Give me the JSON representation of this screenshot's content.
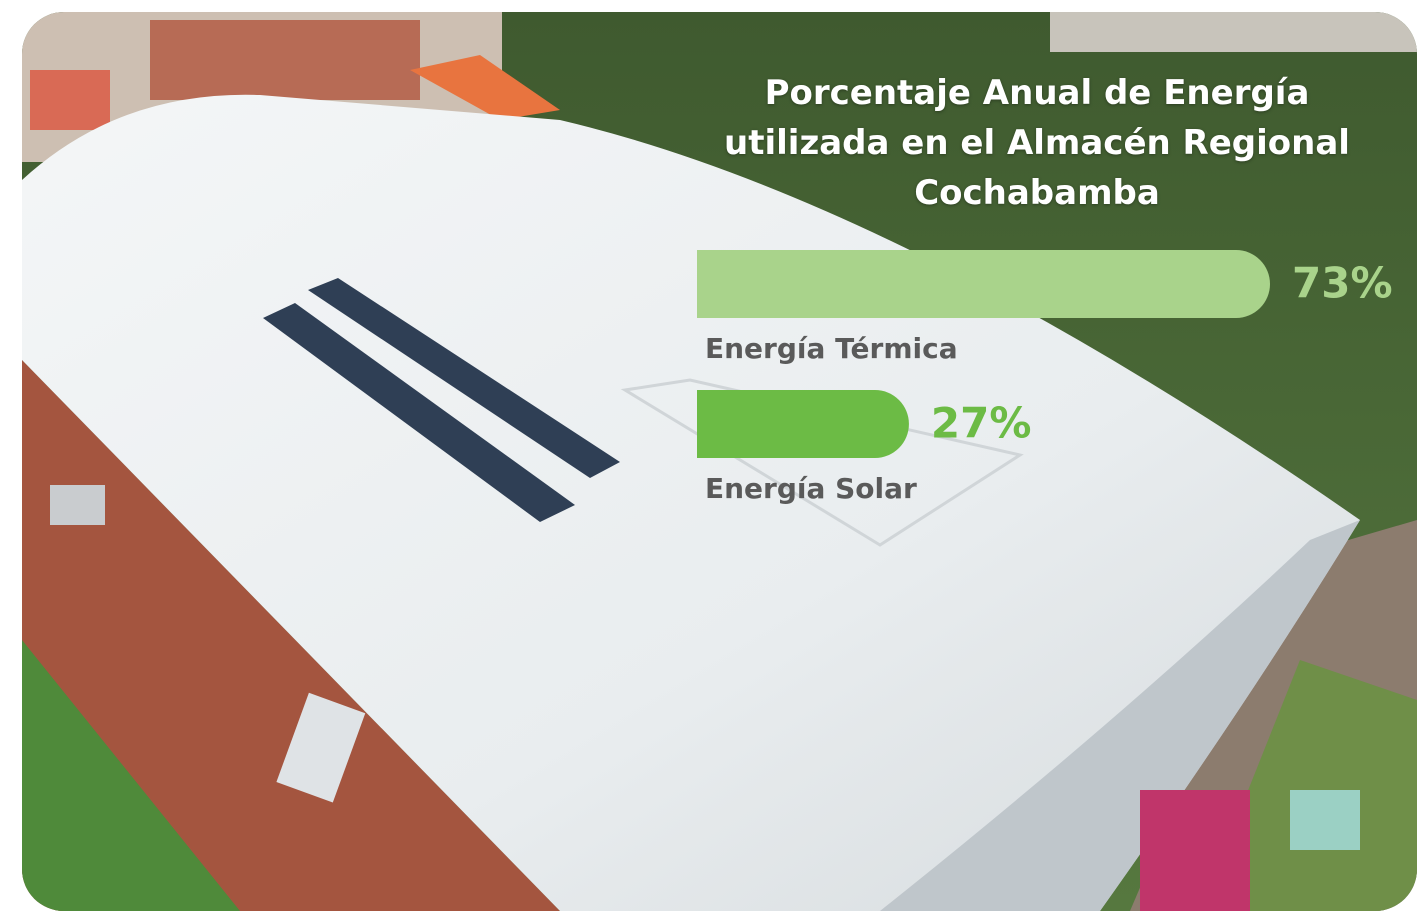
{
  "chart_data": {
    "type": "bar",
    "orientation": "horizontal",
    "title": "Porcentaje Anual de Energía utilizada en el Almacén Regional Cochabamba",
    "categories": [
      "Energía Térmica",
      "Energía Solar"
    ],
    "values": [
      73,
      27
    ],
    "value_labels": [
      "73%",
      "27%"
    ],
    "colors": [
      "#a9d38b",
      "#6cbb45"
    ]
  }
}
